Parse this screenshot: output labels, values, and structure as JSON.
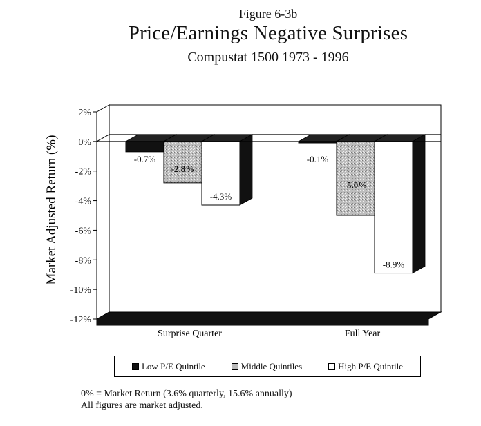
{
  "figure_label": "Figure 6-3b",
  "colors": {
    "low": "#111111",
    "middle": "#b9b9b9",
    "high": "#ffffff",
    "floor": "#111111"
  },
  "chart_data": {
    "type": "bar",
    "title": "Price/Earnings  Negative Surprises",
    "subtitle": "Compustat 1500 1973 - 1996",
    "ylabel": "Market Adjusted Return (%)",
    "xlabel": "",
    "ylim": [
      -12,
      2
    ],
    "yticks": [
      2,
      0,
      -2,
      -4,
      -6,
      -8,
      -10,
      -12
    ],
    "ytick_labels": [
      "2%",
      "0%",
      "-2%",
      "-4%",
      "-6%",
      "-8%",
      "-10%",
      "-12%"
    ],
    "categories": [
      "Surprise Quarter",
      "Full Year"
    ],
    "series": [
      {
        "name": "Low P/E Quintile",
        "values": [
          -0.7,
          -0.1
        ],
        "labels": [
          "-0.7%",
          "-0.1%"
        ]
      },
      {
        "name": "Middle Quintiles",
        "values": [
          -2.8,
          -5.0
        ],
        "labels": [
          "-2.8%",
          "-5.0%"
        ]
      },
      {
        "name": "High P/E Quintile",
        "values": [
          -4.3,
          -8.9
        ],
        "labels": [
          "-4.3%",
          "-8.9%"
        ]
      }
    ],
    "legend_position": "bottom",
    "grid": false
  },
  "notes": [
    "0% = Market Return (3.6% quarterly, 15.6% annually)",
    "All figures are market adjusted."
  ]
}
